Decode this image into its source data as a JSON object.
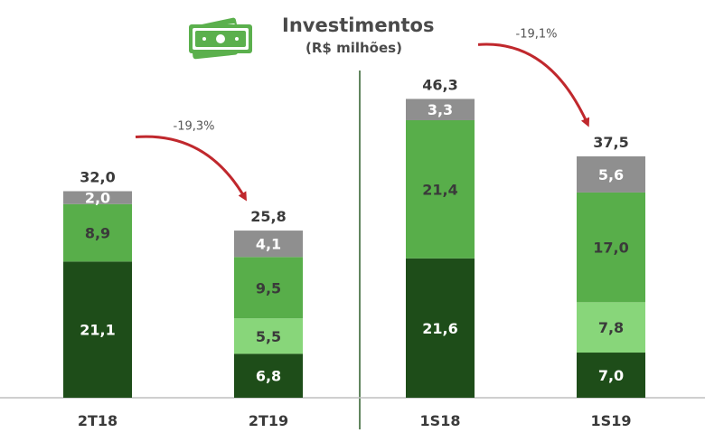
{
  "chart_data": {
    "type": "bar",
    "stacked": true,
    "title": "Investimentos",
    "subtitle": "(R$ milhões)",
    "icon": "money-bills-icon",
    "categories": [
      "2T18",
      "2T19",
      "1S18",
      "1S19"
    ],
    "totals": [
      "32,0",
      "25,8",
      "46,3",
      "37,5"
    ],
    "total_values": [
      32.0,
      25.8,
      46.3,
      37.5
    ],
    "series": [
      {
        "color": "#1e4d19",
        "label_color": "#ffffff",
        "values": [
          21.1,
          6.8,
          21.6,
          7.0
        ],
        "labels": [
          "21,1",
          "6,8",
          "21,6",
          "7,0"
        ]
      },
      {
        "color": "#88d67a",
        "label_color": "#3a3a3a",
        "values": [
          0,
          5.5,
          0,
          7.8
        ],
        "labels": [
          "",
          "5,5",
          "",
          "7,8"
        ]
      },
      {
        "color": "#58ae4a",
        "label_color": "#3a3a3a",
        "values": [
          8.9,
          9.5,
          21.4,
          17.0
        ],
        "labels": [
          "8,9",
          "9,5",
          "21,4",
          "17,0"
        ]
      },
      {
        "color": "#8f8f8f",
        "label_color": "#ffffff",
        "values": [
          2.0,
          4.1,
          3.3,
          5.6
        ],
        "labels": [
          "2,0",
          "4,1",
          "3,3",
          "5,6"
        ]
      }
    ],
    "changes": [
      {
        "from": 0,
        "to": 1,
        "label": "-19,3%"
      },
      {
        "from": 2,
        "to": 3,
        "label": "-19,1%"
      }
    ],
    "colors": {
      "arrow": "#c0282d",
      "axis": "#bfbfbf",
      "divider": "#2e5e2a",
      "icon": "#5bb04d"
    }
  }
}
